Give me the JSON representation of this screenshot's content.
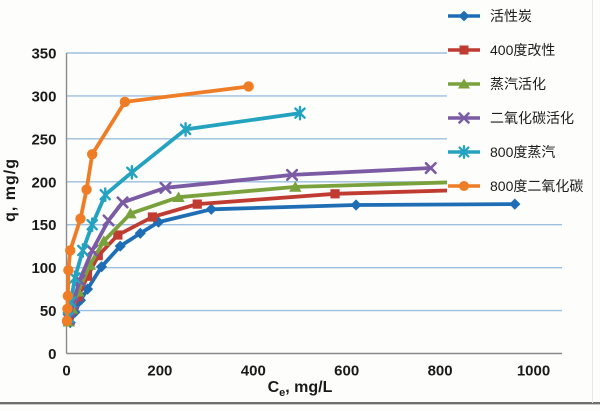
{
  "chart_data": {
    "type": "line",
    "title": "",
    "ylabel": "q, mg/g",
    "xlabel_prefix": "C",
    "xlabel_sub": "e",
    "xlabel_suffix": ", mg/L",
    "xlim": [
      0,
      1060
    ],
    "ylim": [
      0,
      350
    ],
    "x_ticks": [
      0,
      200,
      400,
      600,
      800,
      1000
    ],
    "y_ticks": [
      0,
      50,
      100,
      150,
      200,
      250,
      300,
      350
    ],
    "grid": "horizontal-only",
    "legend_position": "top-right-outside",
    "colors": {
      "gridline": "#9cc0df",
      "axis": "#8a8a8a",
      "text": "#1a1a1a",
      "background": "#fdfdfc"
    },
    "series": [
      {
        "name": "活性炭",
        "color": "#1f6eb5",
        "marker": "diamond",
        "points": [
          [
            8,
            36
          ],
          [
            18,
            48
          ],
          [
            30,
            62
          ],
          [
            45,
            75
          ],
          [
            75,
            101
          ],
          [
            115,
            125
          ],
          [
            158,
            140
          ],
          [
            197,
            153
          ],
          [
            310,
            168
          ],
          [
            620,
            173
          ],
          [
            960,
            174
          ]
        ]
      },
      {
        "name": "400度改性",
        "color": "#c03b31",
        "marker": "square",
        "points": [
          [
            5,
            38
          ],
          [
            12,
            50
          ],
          [
            25,
            66
          ],
          [
            45,
            90
          ],
          [
            68,
            114
          ],
          [
            110,
            138
          ],
          [
            184,
            159
          ],
          [
            280,
            174
          ],
          [
            575,
            186
          ],
          [
            890,
            191
          ]
        ]
      },
      {
        "name": "蒸汽活化",
        "color": "#7aa23c",
        "marker": "triangle",
        "points": [
          [
            5,
            37
          ],
          [
            12,
            52
          ],
          [
            25,
            72
          ],
          [
            50,
            103
          ],
          [
            80,
            131
          ],
          [
            137,
            163
          ],
          [
            240,
            182
          ],
          [
            490,
            194
          ],
          [
            860,
            200
          ]
        ]
      },
      {
        "name": "二氧化碳活化",
        "color": "#7b5ba3",
        "marker": "x",
        "points": [
          [
            5,
            40
          ],
          [
            14,
            58
          ],
          [
            28,
            85
          ],
          [
            55,
            120
          ],
          [
            90,
            155
          ],
          [
            120,
            176
          ],
          [
            212,
            193
          ],
          [
            483,
            208
          ],
          [
            780,
            216
          ]
        ]
      },
      {
        "name": "800度蒸汽",
        "color": "#23a3c0",
        "marker": "asterisk",
        "points": [
          [
            4,
            42
          ],
          [
            9,
            60
          ],
          [
            18,
            88
          ],
          [
            35,
            120
          ],
          [
            55,
            150
          ],
          [
            83,
            185
          ],
          [
            140,
            211
          ],
          [
            255,
            261
          ],
          [
            500,
            280
          ]
        ]
      },
      {
        "name": "800度二氧化碳",
        "color": "#ef7d25",
        "marker": "circle",
        "points": [
          [
            1,
            38
          ],
          [
            2,
            52
          ],
          [
            3,
            67
          ],
          [
            4,
            97
          ],
          [
            8,
            120
          ],
          [
            30,
            157
          ],
          [
            43,
            191
          ],
          [
            55,
            232
          ],
          [
            125,
            293
          ],
          [
            390,
            311
          ]
        ]
      }
    ]
  }
}
